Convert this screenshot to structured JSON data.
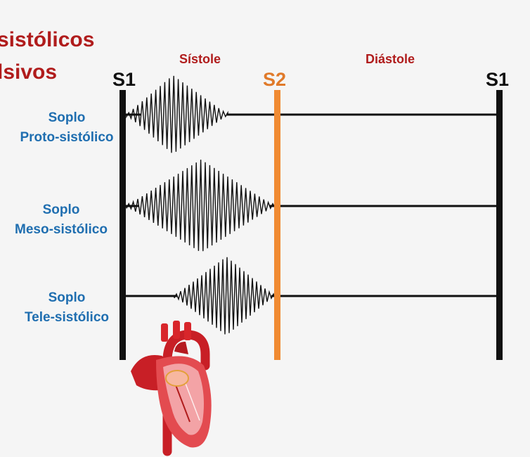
{
  "title": {
    "line1": "sistólicos",
    "line2": "lsivos"
  },
  "phases": {
    "systole": "Sístole",
    "diastole": "Diástole"
  },
  "markers": {
    "s1_left": "S1",
    "s2": "S2",
    "s1_right": "S1"
  },
  "rows": [
    {
      "line1": "Soplo",
      "line2": "Proto-sistólico"
    },
    {
      "line1": "Soplo",
      "line2": "Meso-sistólico"
    },
    {
      "line1": "Soplo",
      "line2": "Tele-sistólico"
    }
  ],
  "colors": {
    "title": "#b01c1c",
    "label": "#1f6eb0",
    "s2_line": "#f08a32",
    "heart": "#d8262b"
  },
  "icons": {
    "heart": "heart-anatomy-icon"
  }
}
